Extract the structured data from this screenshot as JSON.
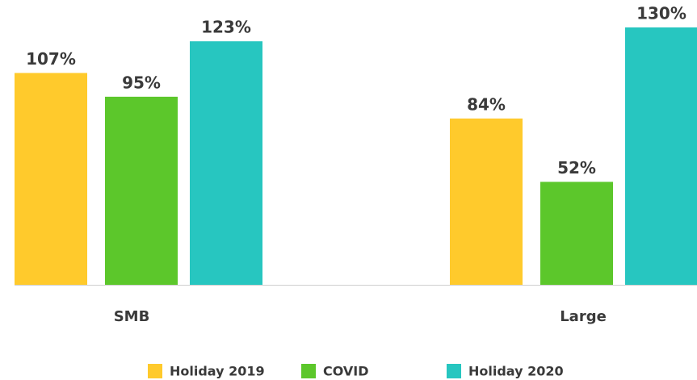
{
  "chart_data": {
    "type": "bar",
    "categories": [
      "SMB",
      "Large"
    ],
    "series": [
      {
        "name": "Holiday 2019",
        "color": "#ffca2c",
        "values": [
          107,
          84
        ],
        "value_labels": [
          "107%",
          "84%"
        ]
      },
      {
        "name": "COVID",
        "color": "#5cc72b",
        "values": [
          95,
          52
        ],
        "value_labels": [
          "95%",
          "52%"
        ]
      },
      {
        "name": "Holiday 2020",
        "color": "#27c6c0",
        "values": [
          123,
          130
        ],
        "value_labels": [
          "123%",
          "130%"
        ]
      }
    ]
  }
}
